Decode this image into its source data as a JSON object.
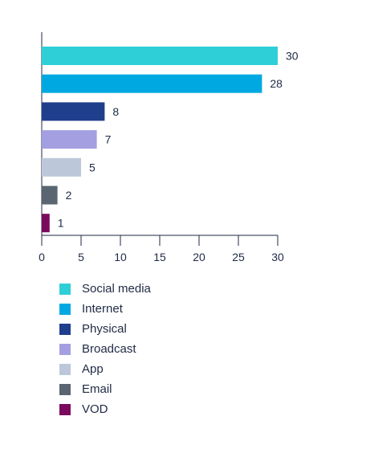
{
  "chart_data": {
    "type": "bar",
    "orientation": "horizontal",
    "categories": [
      "Social media",
      "Internet",
      "Physical",
      "Broadcast",
      "App",
      "Email",
      "VOD"
    ],
    "values": [
      30,
      28,
      8,
      7,
      5,
      2,
      1
    ],
    "colors": [
      "#2ecfd6",
      "#00a8e1",
      "#1f3e8c",
      "#a49fe0",
      "#bcc8da",
      "#596570",
      "#7b0a5e"
    ],
    "xlim": [
      0,
      30
    ],
    "xticks": [
      0,
      5,
      10,
      15,
      20,
      25,
      30
    ],
    "xtick_labels": [
      "0",
      "5",
      "10",
      "15",
      "20",
      "25",
      "30"
    ],
    "data_labels": [
      "30",
      "28",
      "8",
      "7",
      "5",
      "2",
      "1"
    ],
    "legend_position": "bottom-left"
  }
}
